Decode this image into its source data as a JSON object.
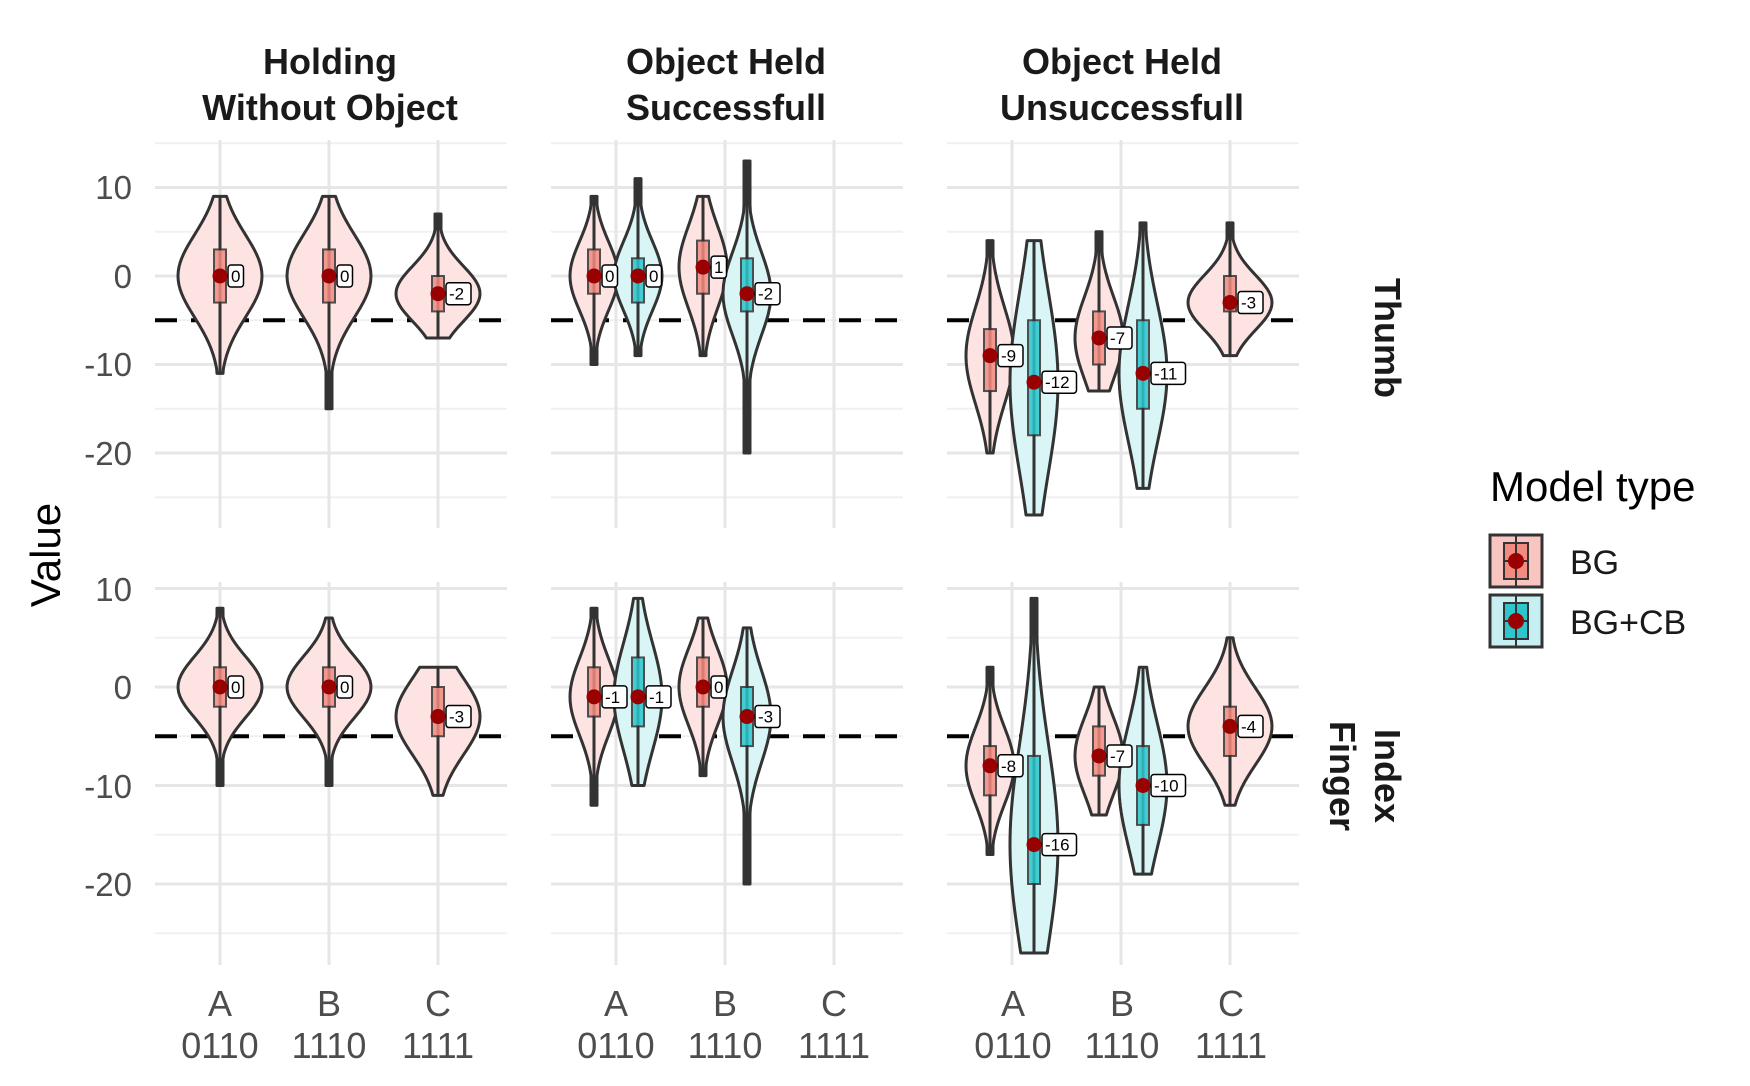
{
  "chart_data": {
    "type": "violin",
    "ylabel": "Value",
    "xlabel": "",
    "ylim": [
      -27,
      15
    ],
    "yticks": [
      10,
      0,
      -10,
      -20
    ],
    "reference_line": -5,
    "categories": [
      {
        "letter": "A",
        "code": "0110"
      },
      {
        "letter": "B",
        "code": "1110"
      },
      {
        "letter": "C",
        "code": "1111"
      }
    ],
    "columns": [
      {
        "title_line1": "Holding",
        "title_line2": "Without Object"
      },
      {
        "title_line1": "Object Held",
        "title_line2": "Successfull"
      },
      {
        "title_line1": "Object Held",
        "title_line2": "Unsuccessfull"
      }
    ],
    "rows": [
      {
        "line1": "Thumb",
        "line2": ""
      },
      {
        "line1": "Index",
        "line2": "Finger"
      }
    ],
    "legend": {
      "title": "Model type",
      "items": [
        {
          "name": "BG",
          "fill": "#f8c5c0",
          "box": "#f28b80"
        },
        {
          "name": "BG+CB",
          "fill": "#c7eef0",
          "box": "#2cc6cc"
        }
      ]
    },
    "colors": {
      "violin_BG": "#fde3e1",
      "violin_BGCB": "#d9f5f6",
      "mean_point": "#990000",
      "outline": "#333333"
    },
    "series": [
      {
        "row": 0,
        "col": 0,
        "cat": 0,
        "model": "BG",
        "min": -11,
        "max": 9,
        "q1": -3,
        "median": 0,
        "q3": 3,
        "mean": 0,
        "label": "0"
      },
      {
        "row": 0,
        "col": 0,
        "cat": 1,
        "model": "BG",
        "min": -15,
        "max": 9,
        "q1": -3,
        "median": 0,
        "q3": 3,
        "mean": 0,
        "label": "0"
      },
      {
        "row": 0,
        "col": 0,
        "cat": 2,
        "model": "BG",
        "min": -7,
        "max": 7,
        "q1": -4,
        "median": -2,
        "q3": 0,
        "mean": -2,
        "label": "-2"
      },
      {
        "row": 0,
        "col": 1,
        "cat": 0,
        "model": "BG",
        "min": -10,
        "max": 9,
        "q1": -2,
        "median": 0,
        "q3": 3,
        "mean": 0,
        "label": "0"
      },
      {
        "row": 0,
        "col": 1,
        "cat": 0,
        "model": "BG+CB",
        "min": -9,
        "max": 11,
        "q1": -3,
        "median": 0,
        "q3": 2,
        "mean": 0,
        "label": "0"
      },
      {
        "row": 0,
        "col": 1,
        "cat": 1,
        "model": "BG",
        "min": -9,
        "max": 9,
        "q1": -2,
        "median": 1,
        "q3": 4,
        "mean": 1,
        "label": "1"
      },
      {
        "row": 0,
        "col": 1,
        "cat": 1,
        "model": "BG+CB",
        "min": -20,
        "max": 13,
        "q1": -4,
        "median": -2,
        "q3": 2,
        "mean": -2,
        "label": "-2"
      },
      {
        "row": 0,
        "col": 2,
        "cat": 0,
        "model": "BG",
        "min": -20,
        "max": 4,
        "q1": -13,
        "median": -9,
        "q3": -6,
        "mean": -9,
        "label": "-9"
      },
      {
        "row": 0,
        "col": 2,
        "cat": 0,
        "model": "BG+CB",
        "min": -27,
        "max": 4,
        "q1": -18,
        "median": -12,
        "q3": -5,
        "mean": -12,
        "label": "-12"
      },
      {
        "row": 0,
        "col": 2,
        "cat": 1,
        "model": "BG",
        "min": -13,
        "max": 5,
        "q1": -10,
        "median": -7,
        "q3": -4,
        "mean": -7,
        "label": "-7"
      },
      {
        "row": 0,
        "col": 2,
        "cat": 1,
        "model": "BG+CB",
        "min": -24,
        "max": 6,
        "q1": -15,
        "median": -11,
        "q3": -5,
        "mean": -11,
        "label": "-11"
      },
      {
        "row": 0,
        "col": 2,
        "cat": 2,
        "model": "BG",
        "min": -9,
        "max": 6,
        "q1": -4,
        "median": -3,
        "q3": 0,
        "mean": -3,
        "label": "-3"
      },
      {
        "row": 1,
        "col": 0,
        "cat": 0,
        "model": "BG",
        "min": -10,
        "max": 8,
        "q1": -2,
        "median": 0,
        "q3": 2,
        "mean": 0,
        "label": "0"
      },
      {
        "row": 1,
        "col": 0,
        "cat": 1,
        "model": "BG",
        "min": -10,
        "max": 7,
        "q1": -2,
        "median": 0,
        "q3": 2,
        "mean": 0,
        "label": "0"
      },
      {
        "row": 1,
        "col": 0,
        "cat": 2,
        "model": "BG",
        "min": -11,
        "max": 2,
        "q1": -5,
        "median": -3,
        "q3": 0,
        "mean": -3,
        "label": "-3"
      },
      {
        "row": 1,
        "col": 1,
        "cat": 0,
        "model": "BG",
        "min": -12,
        "max": 8,
        "q1": -3,
        "median": -1,
        "q3": 2,
        "mean": -1,
        "label": "-1"
      },
      {
        "row": 1,
        "col": 1,
        "cat": 0,
        "model": "BG+CB",
        "min": -10,
        "max": 9,
        "q1": -4,
        "median": -1,
        "q3": 3,
        "mean": -1,
        "label": "-1"
      },
      {
        "row": 1,
        "col": 1,
        "cat": 1,
        "model": "BG",
        "min": -9,
        "max": 7,
        "q1": -2,
        "median": 0,
        "q3": 3,
        "mean": 0,
        "label": "0"
      },
      {
        "row": 1,
        "col": 1,
        "cat": 1,
        "model": "BG+CB",
        "min": -20,
        "max": 6,
        "q1": -6,
        "median": -3,
        "q3": 0,
        "mean": -3,
        "label": "-3"
      },
      {
        "row": 1,
        "col": 2,
        "cat": 0,
        "model": "BG",
        "min": -17,
        "max": 2,
        "q1": -11,
        "median": -8,
        "q3": -6,
        "mean": -8,
        "label": "-8"
      },
      {
        "row": 1,
        "col": 2,
        "cat": 0,
        "model": "BG+CB",
        "min": -27,
        "max": 9,
        "q1": -20,
        "median": -16,
        "q3": -7,
        "mean": -16,
        "label": "-16"
      },
      {
        "row": 1,
        "col": 2,
        "cat": 1,
        "model": "BG",
        "min": -13,
        "max": 0,
        "q1": -9,
        "median": -7,
        "q3": -4,
        "mean": -7,
        "label": "-7"
      },
      {
        "row": 1,
        "col": 2,
        "cat": 1,
        "model": "BG+CB",
        "min": -19,
        "max": 2,
        "q1": -14,
        "median": -10,
        "q3": -6,
        "mean": -10,
        "label": "-10"
      },
      {
        "row": 1,
        "col": 2,
        "cat": 2,
        "model": "BG",
        "min": -12,
        "max": 5,
        "q1": -7,
        "median": -4,
        "q3": -2,
        "mean": -4,
        "label": "-4"
      }
    ]
  }
}
